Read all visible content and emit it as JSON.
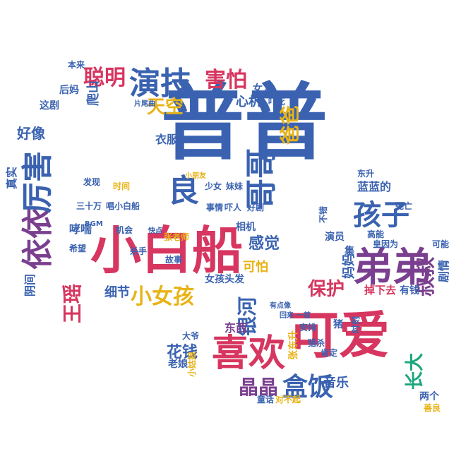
{
  "palette": {
    "blue": "#3a62b0",
    "red": "#d6365f",
    "green": "#1aa67c",
    "yellow": "#e8b316",
    "purple": "#7a3f8f",
    "gray": "#8a8a8a"
  },
  "shape": "speech-bubbles",
  "words": {
    "w01": "普普",
    "w02": "小白船",
    "w03": "可爱",
    "w04": "弟弟",
    "w05": "喜欢",
    "w06": "演技",
    "w07": "哥哥",
    "w08": "依依",
    "w09": "厉害",
    "w10": "聪明",
    "w11": "害怕",
    "w12": "孩子",
    "w13": "小女孩",
    "w14": "盒饭",
    "w15": "晶晶",
    "w16": "银河",
    "w17": "天空",
    "w18": "良",
    "w19": "爸爸",
    "w20": "王瑶",
    "w21": "叔叔",
    "w22": "花钱",
    "w23": "保护",
    "w24": "感觉",
    "w25": "长大",
    "w26": "蓝蓝的",
    "w27": "好像",
    "w28": "音乐",
    "w29": "可怕",
    "w30": "细节",
    "w31": "东西",
    "w32": "衣服",
    "w33": "心机",
    "w34": "爬山",
    "w35": "妈妈",
    "w36": "剧情",
    "w37": "掉下去",
    "w38": "有钱",
    "w39": "演员",
    "w40": "真实",
    "w41": "阴间",
    "w42": "老娘",
    "w43": "张东升",
    "w44": "两个",
    "w45": "安排",
    "w46": "这剧",
    "w47": "后妈",
    "w48": "哮喘",
    "w49": "三十万",
    "w50": "唱小白船",
    "w51": "发现",
    "w52": "时间",
    "w53": "张老师",
    "w54": "故事",
    "w55": "女孩头发",
    "w56": "相机",
    "w57": "事情",
    "w58": "吓人",
    "w59": "妹妹",
    "w60": "少女",
    "w61": "猪",
    "w62": "集",
    "w63": "不错",
    "w64": "东升",
    "w65": "死亡",
    "w66": "高能",
    "w67": "杀手",
    "w68": "小姑娘",
    "w69": "大爷",
    "w70": "对不起",
    "w71": "童话",
    "w72": "肯定",
    "w73": "猎杀",
    "w74": "女人",
    "w75": "吓死",
    "w76": "本来",
    "w77": "片尾曲",
    "w78": "皇因为",
    "w79": "回来",
    "w80": "一首",
    "w81": "善良",
    "w82": "有点像",
    "w83": "时刻",
    "w84": "机会",
    "w85": "希望",
    "w86": "可能",
    "w87": "好剧",
    "w88": "BGM",
    "w89": "小朋友",
    "w90": "快点"
  }
}
